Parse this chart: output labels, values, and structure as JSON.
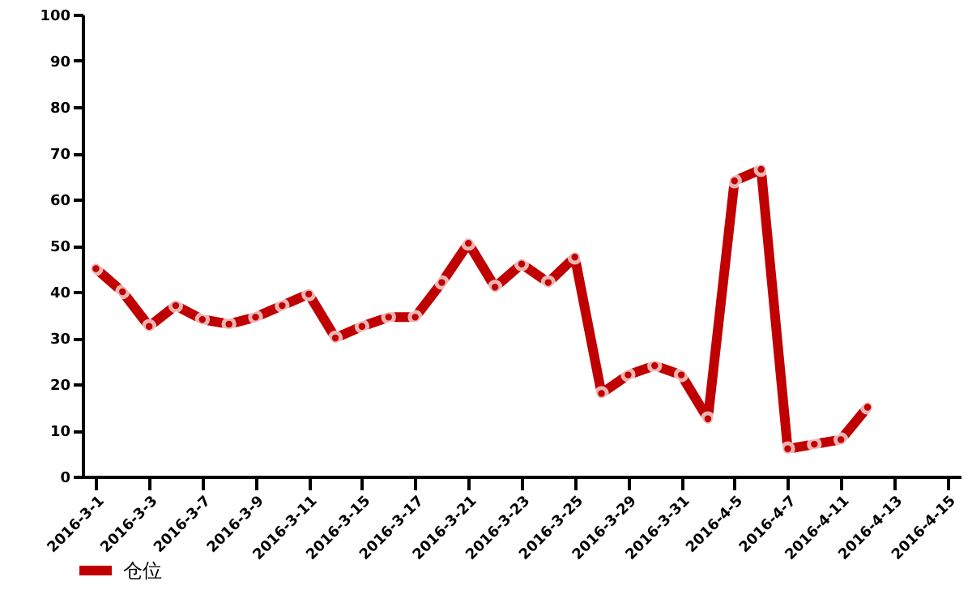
{
  "chart_data": {
    "type": "line",
    "categories": [
      "2016-3-1",
      null,
      "2016-3-3",
      null,
      "2016-3-7",
      null,
      "2016-3-9",
      null,
      "2016-3-11",
      null,
      "2016-3-15",
      null,
      "2016-3-17",
      null,
      "2016-3-21",
      null,
      "2016-3-23",
      null,
      "2016-3-25",
      null,
      "2016-3-29",
      null,
      "2016-3-31",
      null,
      "2016-4-5",
      null,
      "2016-4-7",
      null,
      "2016-4-11",
      null,
      "2016-4-13",
      null,
      "2016-4-15"
    ],
    "series": [
      {
        "name": "仓位",
        "color": "#c00000",
        "values": [
          45,
          40,
          32.5,
          37,
          34,
          33,
          34.5,
          37,
          39.5,
          30,
          32.5,
          34.5,
          34.5,
          42,
          50.5,
          41,
          46,
          42,
          47.5,
          18,
          22,
          24,
          22,
          12.5,
          64,
          66.5,
          6,
          7,
          8,
          15,
          null,
          null,
          null
        ]
      }
    ],
    "ylim": [
      0,
      100
    ],
    "yticks": [
      0,
      10,
      20,
      30,
      40,
      50,
      60,
      70,
      80,
      90,
      100
    ],
    "grid": false,
    "legend": "bottom left",
    "marker": "circle",
    "line_style": "solid"
  }
}
